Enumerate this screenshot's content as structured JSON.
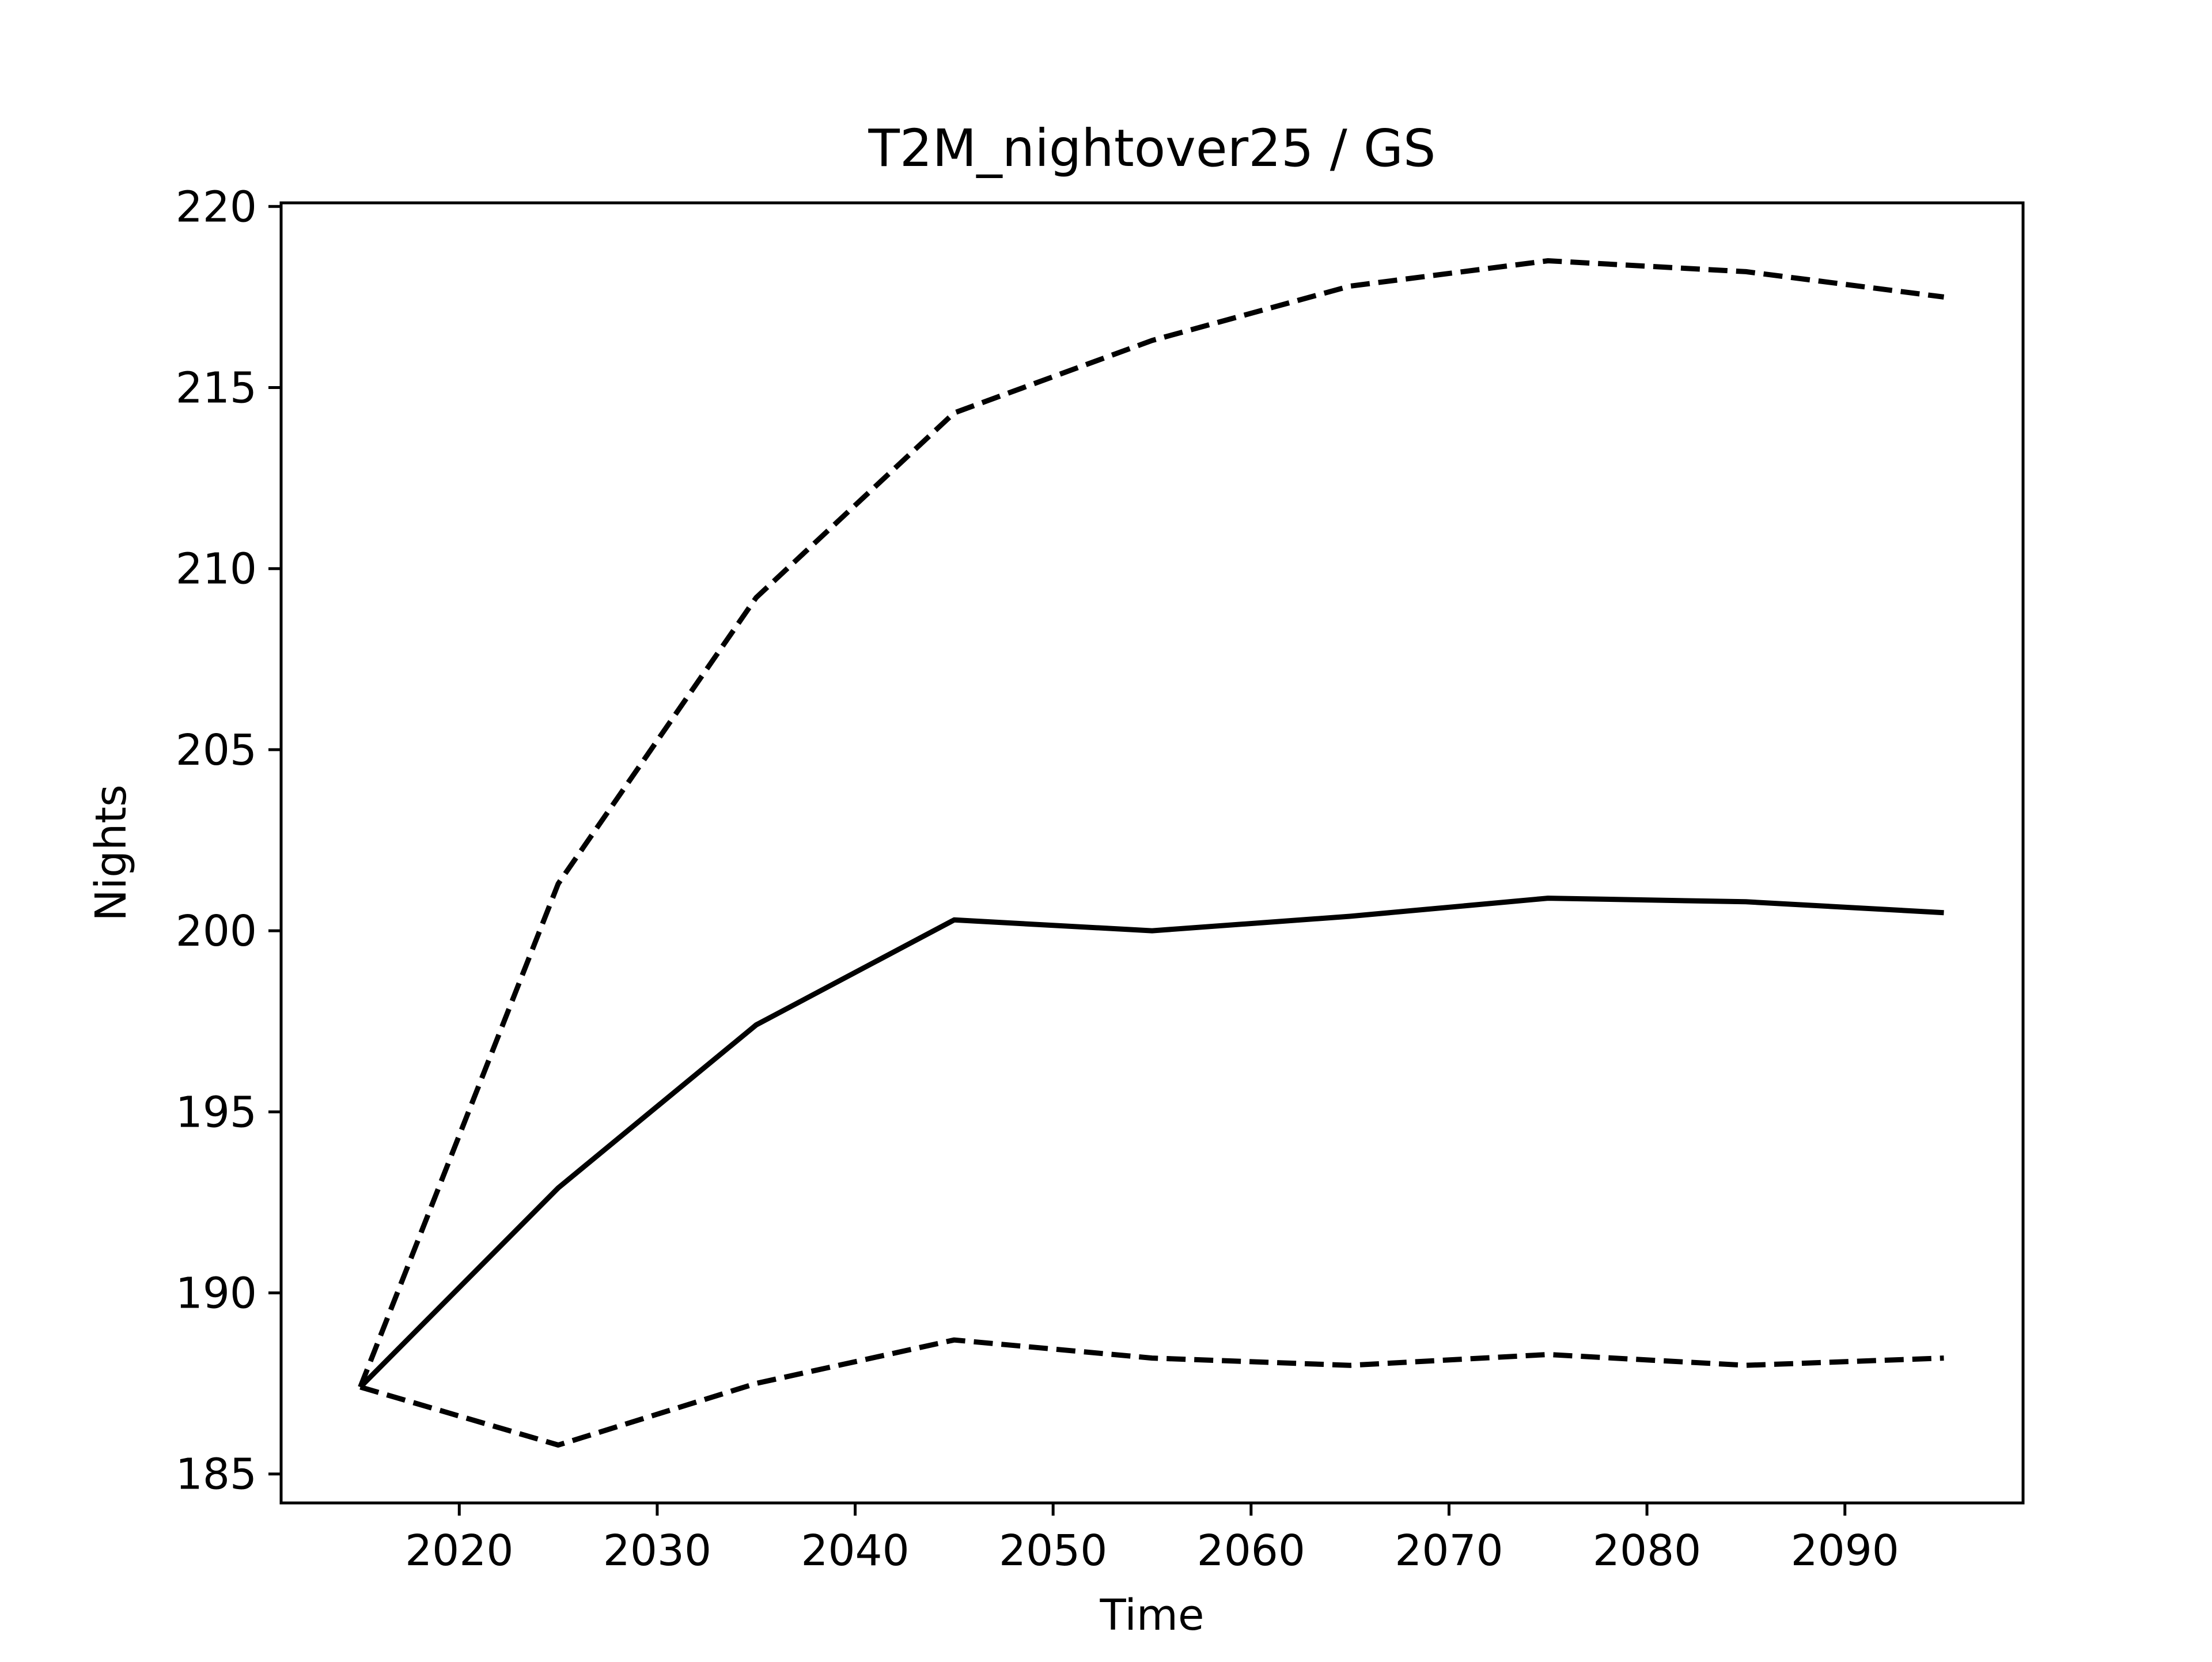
{
  "chart_data": {
    "type": "line",
    "title": "T2M_nightover25 / GS",
    "xlabel": "Time",
    "ylabel": "Nights",
    "xlim": [
      2011,
      2099
    ],
    "ylim": [
      184.2,
      220.1
    ],
    "x_ticks": [
      2020,
      2030,
      2040,
      2050,
      2060,
      2070,
      2080,
      2090
    ],
    "y_ticks": [
      185,
      190,
      195,
      200,
      205,
      210,
      215,
      220
    ],
    "x_tick_labels": [
      "2020",
      "2030",
      "2040",
      "2050",
      "2060",
      "2070",
      "2080",
      "2090"
    ],
    "y_tick_labels": [
      "185",
      "190",
      "195",
      "200",
      "205",
      "210",
      "215",
      "220"
    ],
    "grid": false,
    "x": [
      2015,
      2025,
      2035,
      2045,
      2055,
      2065,
      2075,
      2085,
      2095
    ],
    "series": [
      {
        "style": "dashed",
        "color": "#000000",
        "values": [
          187.4,
          201.3,
          209.2,
          214.3,
          216.3,
          217.8,
          218.5,
          218.2,
          217.5
        ]
      },
      {
        "style": "solid",
        "color": "#000000",
        "values": [
          187.4,
          192.9,
          197.4,
          200.3,
          200.0,
          200.4,
          200.9,
          200.8,
          200.5
        ]
      },
      {
        "style": "dashed",
        "color": "#000000",
        "values": [
          187.4,
          185.8,
          187.5,
          188.7,
          188.2,
          188.0,
          188.3,
          188.0,
          188.2
        ]
      }
    ]
  }
}
